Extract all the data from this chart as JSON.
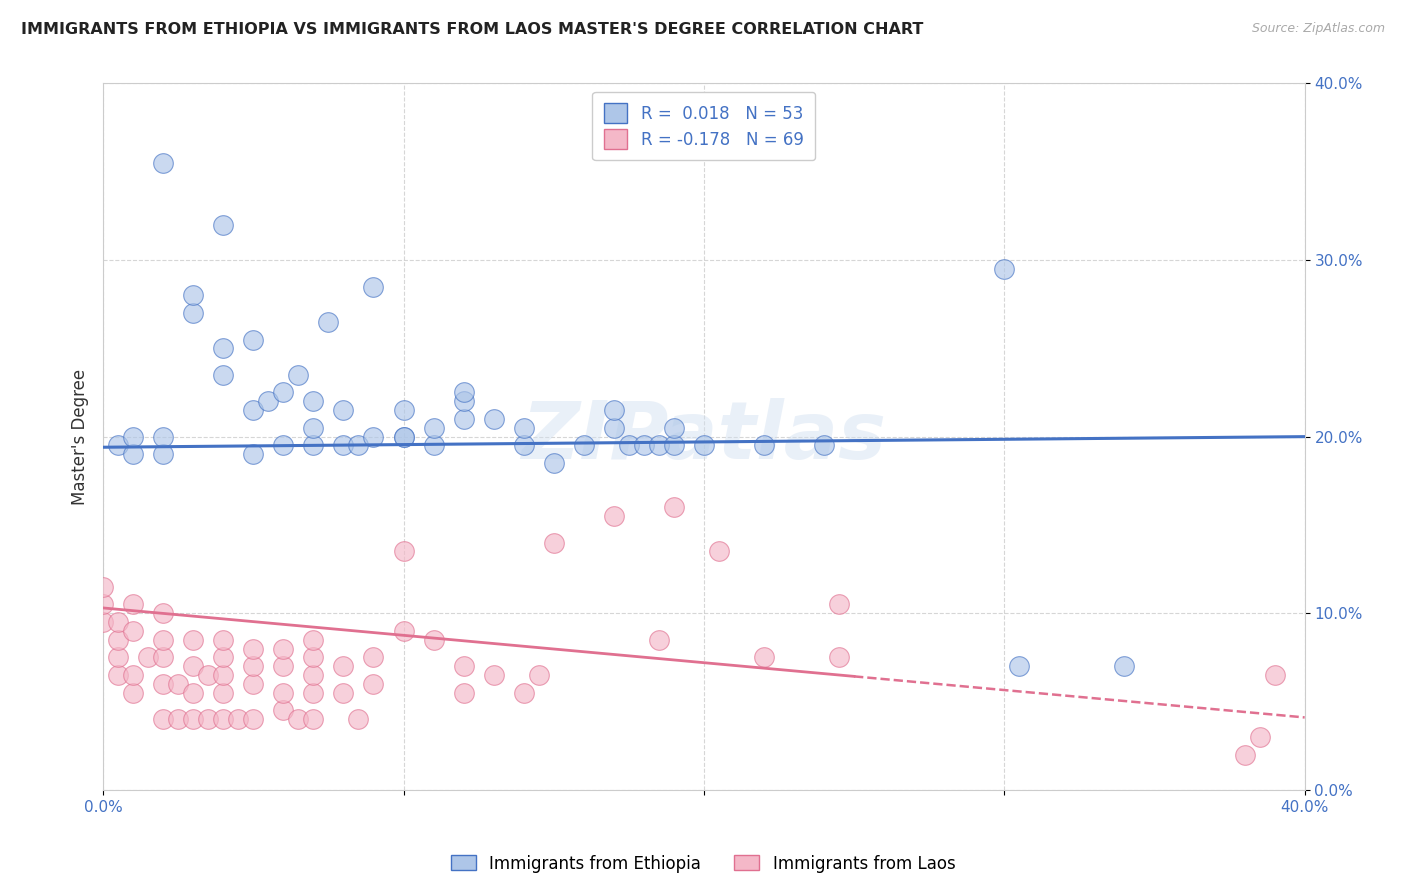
{
  "title": "IMMIGRANTS FROM ETHIOPIA VS IMMIGRANTS FROM LAOS MASTER'S DEGREE CORRELATION CHART",
  "source": "Source: ZipAtlas.com",
  "ylabel": "Master's Degree",
  "xlim": [
    0.0,
    0.4
  ],
  "ylim": [
    0.0,
    0.4
  ],
  "xticks": [
    0.0,
    0.1,
    0.2,
    0.3,
    0.4
  ],
  "yticks": [
    0.0,
    0.1,
    0.2,
    0.3,
    0.4
  ],
  "xticklabels": [
    "0.0%",
    "",
    "",
    "",
    "40.0%"
  ],
  "yticklabels": [
    "0.0%",
    "10.0%",
    "20.0%",
    "30.0%",
    "40.0%"
  ],
  "legend_labels": [
    "Immigrants from Ethiopia",
    "Immigrants from Laos"
  ],
  "r_ethiopia": 0.018,
  "n_ethiopia": 53,
  "r_laos": -0.178,
  "n_laos": 69,
  "color_ethiopia": "#aec6e8",
  "color_laos": "#f4b8c8",
  "line_color_ethiopia": "#4472c4",
  "line_color_laos": "#e07090",
  "watermark": "ZIPatlas",
  "ethiopia_x": [
    0.005,
    0.01,
    0.01,
    0.02,
    0.02,
    0.02,
    0.03,
    0.03,
    0.04,
    0.04,
    0.04,
    0.05,
    0.05,
    0.05,
    0.055,
    0.06,
    0.06,
    0.065,
    0.07,
    0.07,
    0.07,
    0.075,
    0.08,
    0.08,
    0.085,
    0.09,
    0.09,
    0.1,
    0.1,
    0.1,
    0.11,
    0.11,
    0.12,
    0.12,
    0.12,
    0.13,
    0.14,
    0.14,
    0.15,
    0.16,
    0.17,
    0.17,
    0.175,
    0.18,
    0.185,
    0.19,
    0.19,
    0.2,
    0.22,
    0.24,
    0.3,
    0.305,
    0.34
  ],
  "ethiopia_y": [
    0.195,
    0.19,
    0.2,
    0.355,
    0.19,
    0.2,
    0.27,
    0.28,
    0.235,
    0.25,
    0.32,
    0.19,
    0.215,
    0.255,
    0.22,
    0.195,
    0.225,
    0.235,
    0.195,
    0.205,
    0.22,
    0.265,
    0.195,
    0.215,
    0.195,
    0.2,
    0.285,
    0.2,
    0.2,
    0.215,
    0.195,
    0.205,
    0.21,
    0.22,
    0.225,
    0.21,
    0.195,
    0.205,
    0.185,
    0.195,
    0.205,
    0.215,
    0.195,
    0.195,
    0.195,
    0.195,
    0.205,
    0.195,
    0.195,
    0.195,
    0.295,
    0.07,
    0.07
  ],
  "laos_x": [
    0.0,
    0.0,
    0.0,
    0.005,
    0.005,
    0.005,
    0.005,
    0.01,
    0.01,
    0.01,
    0.01,
    0.015,
    0.02,
    0.02,
    0.02,
    0.02,
    0.02,
    0.025,
    0.025,
    0.03,
    0.03,
    0.03,
    0.03,
    0.035,
    0.035,
    0.04,
    0.04,
    0.04,
    0.04,
    0.04,
    0.045,
    0.05,
    0.05,
    0.05,
    0.05,
    0.06,
    0.06,
    0.06,
    0.06,
    0.065,
    0.07,
    0.07,
    0.07,
    0.07,
    0.07,
    0.08,
    0.08,
    0.085,
    0.09,
    0.09,
    0.1,
    0.1,
    0.11,
    0.12,
    0.12,
    0.13,
    0.14,
    0.145,
    0.15,
    0.17,
    0.185,
    0.19,
    0.205,
    0.22,
    0.245,
    0.245,
    0.38,
    0.385,
    0.39
  ],
  "laos_y": [
    0.095,
    0.105,
    0.115,
    0.065,
    0.075,
    0.085,
    0.095,
    0.055,
    0.065,
    0.09,
    0.105,
    0.075,
    0.04,
    0.06,
    0.075,
    0.085,
    0.1,
    0.04,
    0.06,
    0.04,
    0.055,
    0.07,
    0.085,
    0.04,
    0.065,
    0.04,
    0.055,
    0.065,
    0.075,
    0.085,
    0.04,
    0.04,
    0.06,
    0.07,
    0.08,
    0.045,
    0.055,
    0.07,
    0.08,
    0.04,
    0.04,
    0.055,
    0.065,
    0.075,
    0.085,
    0.055,
    0.07,
    0.04,
    0.06,
    0.075,
    0.09,
    0.135,
    0.085,
    0.055,
    0.07,
    0.065,
    0.055,
    0.065,
    0.14,
    0.155,
    0.085,
    0.16,
    0.135,
    0.075,
    0.105,
    0.075,
    0.02,
    0.03,
    0.065
  ]
}
